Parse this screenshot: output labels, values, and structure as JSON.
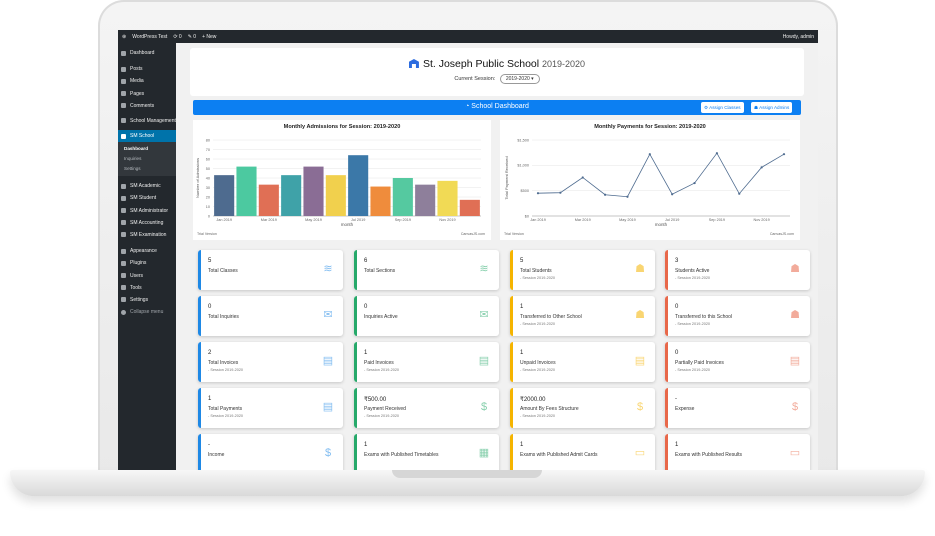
{
  "adminbar": {
    "site": "WordPress Test",
    "updates": "0",
    "comments": "0",
    "new": "+ New",
    "howdy": "Howdy, admin"
  },
  "sidebar": {
    "items_top": [
      {
        "label": "Dashboard"
      }
    ],
    "items": [
      {
        "label": "Posts"
      },
      {
        "label": "Media"
      },
      {
        "label": "Pages"
      },
      {
        "label": "Comments"
      },
      {
        "label": "School Management"
      }
    ],
    "active": "SM School",
    "submenu": [
      "Dashboard",
      "Inquiries",
      "Settings"
    ],
    "items_sm": [
      {
        "label": "SM Academic"
      },
      {
        "label": "SM Student"
      },
      {
        "label": "SM Administrator"
      },
      {
        "label": "SM Accounting"
      },
      {
        "label": "SM Examination"
      }
    ],
    "items_bottom": [
      {
        "label": "Appearance"
      },
      {
        "label": "Plugins"
      },
      {
        "label": "Users"
      },
      {
        "label": "Tools"
      },
      {
        "label": "Settings"
      },
      {
        "label": "Collapse menu"
      }
    ]
  },
  "header": {
    "school_name": "St. Joseph Public School",
    "year": "2019-2020",
    "session_label": "Current Session:",
    "session_value": "2019-2020 ▾"
  },
  "dashbar": {
    "title": "School Dashboard",
    "assign_classes": "Assign Classes",
    "assign_admins": "Assign Admins"
  },
  "chart_data": [
    {
      "type": "bar",
      "title": "Monthly Admissions for Session: 2019-2020",
      "xlabel": "month",
      "ylabel": "Number of Admissions",
      "ylim": [
        0,
        80
      ],
      "yticks": [
        0,
        10,
        20,
        30,
        40,
        50,
        60,
        70,
        80
      ],
      "categories": [
        "Jan 2019",
        "Feb 2019",
        "Mar 2019",
        "Apr 2019",
        "May 2019",
        "Jun 2019",
        "Jul 2019",
        "Aug 2019",
        "Sep 2019",
        "Oct 2019",
        "Nov 2019",
        "Dec 2019"
      ],
      "xtick_labels": [
        "Jan 2019",
        "Mar 2019",
        "May 2019",
        "Jul 2019",
        "Sep 2019",
        "Nov 2019"
      ],
      "values": [
        43,
        52,
        33,
        43,
        52,
        43,
        64,
        31,
        40,
        33,
        37,
        17
      ],
      "colors": [
        "#4e6b8f",
        "#4cc9a0",
        "#e06f55",
        "#3fa2a8",
        "#8a6d95",
        "#f1d04d",
        "#3b78a8",
        "#ef8c3c",
        "#55c9a0",
        "#8e7f9b",
        "#f1da55",
        "#e06f55"
      ],
      "footer_left": "Trial Version",
      "footer_right": "CanvasJS.com"
    },
    {
      "type": "line",
      "title": "Monthly Payments for Session: 2019-2020",
      "xlabel": "month",
      "ylabel": "Total Payment Received",
      "ylim": [
        0,
        1500
      ],
      "ytick_labels": [
        "$0",
        "$500",
        "$1,000",
        "$1,500"
      ],
      "categories": [
        "Jan 2019",
        "Feb 2019",
        "Mar 2019",
        "Apr 2019",
        "May 2019",
        "Jun 2019",
        "Jul 2019",
        "Aug 2019",
        "Sep 2019",
        "Oct 2019",
        "Nov 2019",
        "Dec 2019"
      ],
      "xtick_labels": [
        "Jan 2019",
        "Mar 2019",
        "May 2019",
        "Jul 2019",
        "Sep 2019",
        "Nov 2019"
      ],
      "values": [
        450,
        460,
        760,
        420,
        380,
        1220,
        430,
        650,
        1240,
        440,
        960,
        1220
      ],
      "color": "#4e6b8f",
      "footer_left": "Trial Version",
      "footer_right": "CanvasJS.com"
    }
  ],
  "cards": [
    {
      "value": "5",
      "label": "Total Classes",
      "session": "",
      "color": "#1e88e5",
      "icon": "layers-icon",
      "glyph": "≋"
    },
    {
      "value": "6",
      "label": "Total Sections",
      "session": "",
      "color": "#26a96a",
      "icon": "layers-icon",
      "glyph": "≋"
    },
    {
      "value": "5",
      "label": "Total Students",
      "session": "- Session 2019-2020",
      "color": "#f5b400",
      "icon": "users-icon",
      "glyph": "☗"
    },
    {
      "value": "3",
      "label": "Students Active",
      "session": "- Session 2019-2020",
      "color": "#e8684a",
      "icon": "users-icon",
      "glyph": "☗"
    },
    {
      "value": "0",
      "label": "Total Inquiries",
      "session": "",
      "color": "#1e88e5",
      "icon": "envelope-icon",
      "glyph": "✉"
    },
    {
      "value": "0",
      "label": "Inquiries Active",
      "session": "",
      "color": "#26a96a",
      "icon": "envelope-icon",
      "glyph": "✉"
    },
    {
      "value": "1",
      "label": "Transferred to Other School",
      "session": "- Session 2019-2020",
      "color": "#f5b400",
      "icon": "users-icon",
      "glyph": "☗"
    },
    {
      "value": "0",
      "label": "Transferred to this School",
      "session": "- Session 2019-2020",
      "color": "#e8684a",
      "icon": "users-icon",
      "glyph": "☗"
    },
    {
      "value": "2",
      "label": "Total Invoices",
      "session": "- Session 2019-2020",
      "color": "#1e88e5",
      "icon": "invoice-icon",
      "glyph": "▤"
    },
    {
      "value": "1",
      "label": "Paid Invoices",
      "session": "- Session 2019-2020",
      "color": "#26a96a",
      "icon": "invoice-icon",
      "glyph": "▤"
    },
    {
      "value": "1",
      "label": "Unpaid Invoices",
      "session": "- Session 2019-2020",
      "color": "#f5b400",
      "icon": "invoice-icon",
      "glyph": "▤"
    },
    {
      "value": "0",
      "label": "Partially Paid Invoices",
      "session": "- Session 2019-2020",
      "color": "#e8684a",
      "icon": "invoice-icon",
      "glyph": "▤"
    },
    {
      "value": "1",
      "label": "Total Payments",
      "session": "- Session 2019-2020",
      "color": "#1e88e5",
      "icon": "receipt-icon",
      "glyph": "▤"
    },
    {
      "value": "₹500.00",
      "label": "Payment Received",
      "session": "- Session 2019-2020",
      "color": "#26a96a",
      "icon": "dollar-icon",
      "glyph": "$"
    },
    {
      "value": "₹2000.00",
      "label": "Amount By Fees Structure",
      "session": "- Session 2019-2020",
      "color": "#f5b400",
      "icon": "dollar-icon",
      "glyph": "$"
    },
    {
      "value": "-",
      "label": "Expense",
      "session": "",
      "color": "#e8684a",
      "icon": "dollar-icon",
      "glyph": "$"
    },
    {
      "value": "-",
      "label": "Income",
      "session": "",
      "color": "#1e88e5",
      "icon": "dollar-icon",
      "glyph": "$"
    },
    {
      "value": "1",
      "label": "Exams with Published Timetables",
      "session": "",
      "color": "#26a96a",
      "icon": "calendar-icon",
      "glyph": "▦"
    },
    {
      "value": "1",
      "label": "Exams with Published Admit Cards",
      "session": "",
      "color": "#f5b400",
      "icon": "id-card-icon",
      "glyph": "▭"
    },
    {
      "value": "1",
      "label": "Exams with Published Results",
      "session": "",
      "color": "#e8684a",
      "icon": "id-card-icon",
      "glyph": "▭"
    }
  ]
}
